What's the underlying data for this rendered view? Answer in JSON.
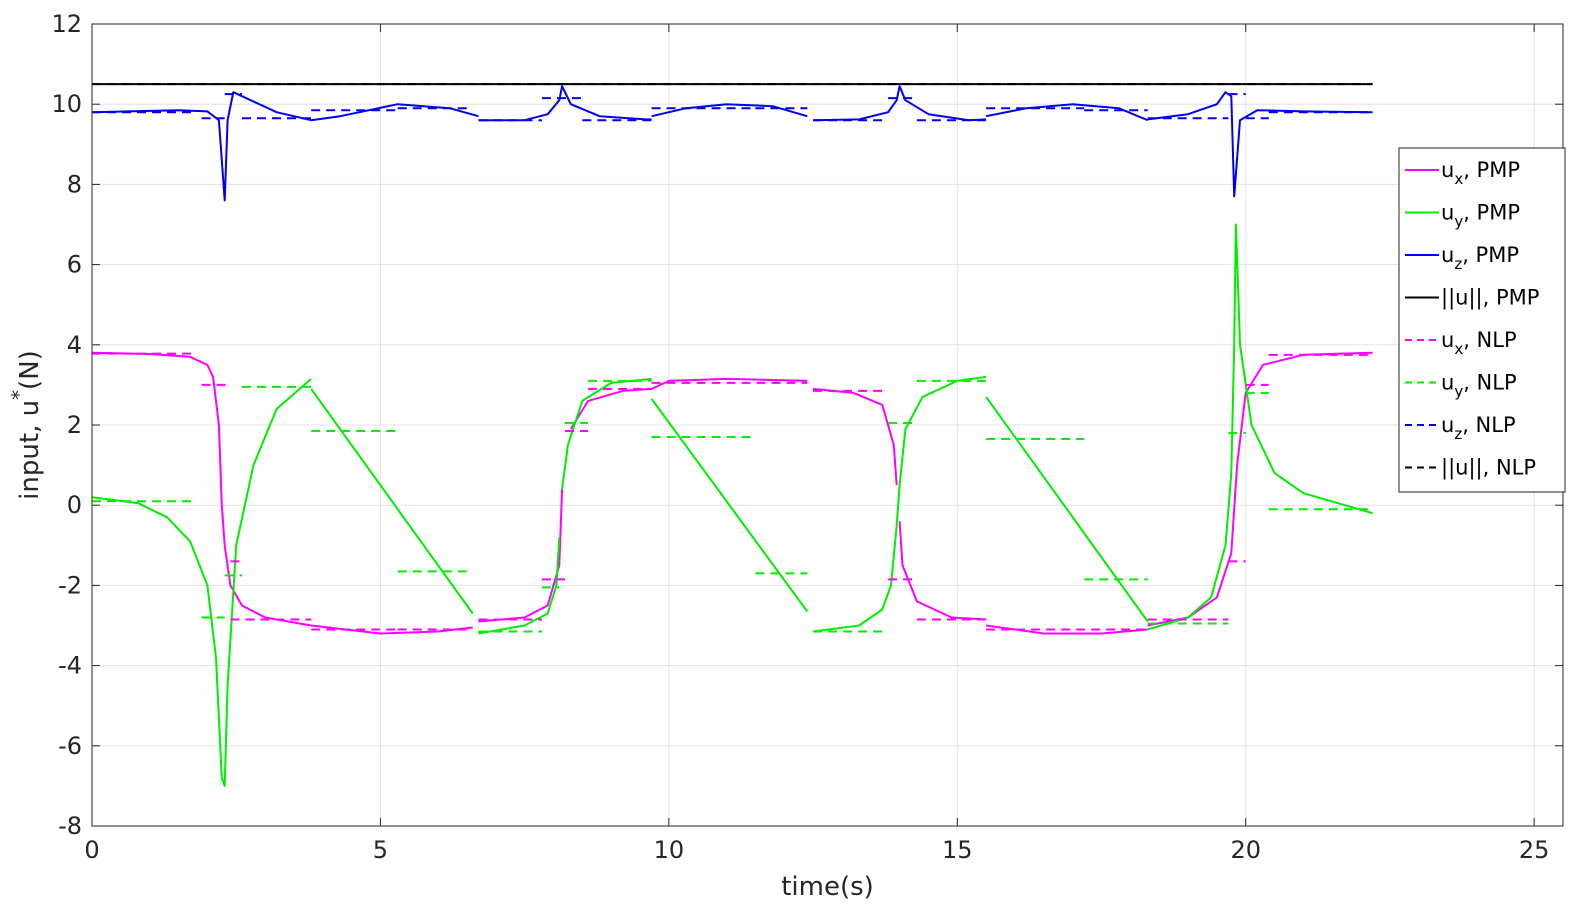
{
  "chart_data": {
    "type": "line",
    "xlabel": "time(s)",
    "ylabel_main": "input, u",
    "ylabel_sup": "*",
    "ylabel_unit": "(N)",
    "xlim": [
      0,
      25.5
    ],
    "ylim": [
      -8,
      12
    ],
    "xticks": [
      0,
      5,
      10,
      15,
      20,
      25
    ],
    "yticks": [
      -8,
      -6,
      -4,
      -2,
      0,
      2,
      4,
      6,
      8,
      10,
      12
    ],
    "grid": true,
    "legend_position": "right",
    "series": [
      {
        "name": "ux, PMP",
        "label_main": "u",
        "label_sub": "x",
        "label_suffix": ", PMP",
        "color": "#ff00ff",
        "style": "solid",
        "segments": [
          [
            [
              0,
              3.8
            ],
            [
              1,
              3.77
            ],
            [
              1.7,
              3.7
            ],
            [
              2.0,
              3.5
            ],
            [
              2.1,
              3.2
            ],
            [
              2.2,
              2.0
            ],
            [
              2.25,
              0
            ],
            [
              2.3,
              -1.0
            ],
            [
              2.4,
              -2.0
            ],
            [
              2.6,
              -2.5
            ],
            [
              3.0,
              -2.8
            ],
            [
              3.8,
              -3.0
            ],
            [
              5.0,
              -3.2
            ],
            [
              6.0,
              -3.15
            ],
            [
              6.6,
              -3.05
            ]
          ],
          [
            [
              6.7,
              -2.9
            ],
            [
              7.5,
              -2.8
            ],
            [
              7.9,
              -2.5
            ],
            [
              8.1,
              -1.5
            ],
            [
              8.15,
              0.4
            ]
          ],
          [
            [
              8.3,
              1.9
            ],
            [
              8.6,
              2.6
            ],
            [
              9.2,
              2.85
            ],
            [
              9.7,
              2.9
            ],
            [
              10.0,
              3.1
            ],
            [
              11.0,
              3.15
            ],
            [
              12.4,
              3.1
            ]
          ],
          [
            [
              12.5,
              2.9
            ],
            [
              13.2,
              2.8
            ],
            [
              13.7,
              2.5
            ],
            [
              13.9,
              1.5
            ],
            [
              13.95,
              0.5
            ]
          ],
          [
            [
              14.0,
              -0.4
            ],
            [
              14.05,
              -1.5
            ],
            [
              14.3,
              -2.4
            ],
            [
              14.9,
              -2.8
            ],
            [
              15.5,
              -2.85
            ]
          ],
          [
            [
              15.5,
              -3.0
            ],
            [
              16.5,
              -3.2
            ],
            [
              17.5,
              -3.2
            ],
            [
              18.3,
              -3.1
            ]
          ],
          [
            [
              18.3,
              -3.0
            ],
            [
              19.0,
              -2.8
            ],
            [
              19.5,
              -2.3
            ],
            [
              19.75,
              -1.2
            ],
            [
              19.85,
              1.0
            ],
            [
              20.0,
              2.8
            ],
            [
              20.3,
              3.5
            ],
            [
              21.0,
              3.75
            ],
            [
              22.2,
              3.8
            ]
          ]
        ]
      },
      {
        "name": "uy, PMP",
        "label_main": "u",
        "label_sub": "y",
        "label_suffix": ", PMP",
        "color": "#00ee00",
        "style": "solid",
        "segments": [
          [
            [
              0,
              0.2
            ],
            [
              0.8,
              0.05
            ],
            [
              1.3,
              -0.3
            ],
            [
              1.7,
              -0.9
            ],
            [
              2.0,
              -2.0
            ],
            [
              2.15,
              -3.8
            ],
            [
              2.25,
              -6.8
            ],
            [
              2.3,
              -7.0
            ],
            [
              2.35,
              -4.5
            ],
            [
              2.5,
              -1.0
            ],
            [
              2.8,
              1.0
            ],
            [
              3.2,
              2.4
            ],
            [
              3.8,
              3.15
            ]
          ],
          [
            [
              3.8,
              2.9
            ],
            [
              6.6,
              -2.7
            ]
          ],
          [
            [
              6.7,
              -3.2
            ],
            [
              7.5,
              -3.0
            ],
            [
              7.9,
              -2.7
            ],
            [
              8.05,
              -2.0
            ],
            [
              8.1,
              -0.8
            ]
          ],
          [
            [
              8.15,
              0.4
            ],
            [
              8.25,
              1.5
            ],
            [
              8.5,
              2.6
            ],
            [
              9.0,
              3.05
            ],
            [
              9.7,
              3.15
            ]
          ],
          [
            [
              9.7,
              2.65
            ],
            [
              12.4,
              -2.65
            ]
          ],
          [
            [
              12.5,
              -3.15
            ],
            [
              13.3,
              -3.0
            ],
            [
              13.7,
              -2.6
            ],
            [
              13.85,
              -2.0
            ],
            [
              13.95,
              -0.5
            ],
            [
              14.0,
              0.5
            ],
            [
              14.1,
              1.9
            ],
            [
              14.4,
              2.7
            ],
            [
              15.0,
              3.1
            ],
            [
              15.5,
              3.2
            ]
          ],
          [
            [
              15.5,
              2.7
            ],
            [
              18.3,
              -2.9
            ]
          ],
          [
            [
              18.3,
              -3.1
            ],
            [
              19.0,
              -2.8
            ],
            [
              19.4,
              -2.3
            ],
            [
              19.65,
              -1.0
            ],
            [
              19.75,
              0.8
            ],
            [
              19.8,
              4.0
            ],
            [
              19.83,
              7.0
            ],
            [
              19.9,
              4.0
            ],
            [
              20.1,
              2.0
            ],
            [
              20.5,
              0.8
            ],
            [
              21.0,
              0.3
            ],
            [
              22.2,
              -0.2
            ]
          ]
        ]
      },
      {
        "name": "uz, PMP",
        "label_main": "u",
        "label_sub": "z",
        "label_suffix": ", PMP",
        "color": "#0000ee",
        "style": "solid",
        "segments": [
          [
            [
              0,
              9.8
            ],
            [
              1.5,
              9.85
            ],
            [
              2.0,
              9.82
            ],
            [
              2.2,
              9.6
            ],
            [
              2.3,
              7.6
            ],
            [
              2.35,
              9.6
            ],
            [
              2.45,
              10.3
            ],
            [
              2.6,
              10.2
            ],
            [
              3.2,
              9.8
            ],
            [
              3.8,
              9.6
            ],
            [
              4.3,
              9.7
            ],
            [
              5.3,
              10.0
            ],
            [
              6.2,
              9.9
            ],
            [
              6.7,
              9.7
            ]
          ],
          [
            [
              6.7,
              9.6
            ],
            [
              7.5,
              9.6
            ],
            [
              7.9,
              9.75
            ],
            [
              8.1,
              10.1
            ],
            [
              8.15,
              10.45
            ],
            [
              8.3,
              10.0
            ],
            [
              8.8,
              9.7
            ],
            [
              9.6,
              9.62
            ],
            [
              9.7,
              9.62
            ]
          ],
          [
            [
              9.7,
              9.7
            ],
            [
              10.3,
              9.9
            ],
            [
              11.0,
              10.0
            ],
            [
              11.8,
              9.95
            ],
            [
              12.4,
              9.7
            ]
          ],
          [
            [
              12.5,
              9.6
            ],
            [
              13.3,
              9.62
            ],
            [
              13.8,
              9.8
            ],
            [
              13.95,
              10.1
            ],
            [
              14.0,
              10.45
            ],
            [
              14.1,
              10.1
            ],
            [
              14.5,
              9.75
            ],
            [
              15.2,
              9.6
            ],
            [
              15.5,
              9.62
            ]
          ],
          [
            [
              15.5,
              9.7
            ],
            [
              16.2,
              9.9
            ],
            [
              17.0,
              10.0
            ],
            [
              17.8,
              9.9
            ],
            [
              18.3,
              9.6
            ]
          ],
          [
            [
              18.3,
              9.62
            ],
            [
              19.0,
              9.75
            ],
            [
              19.5,
              10.0
            ],
            [
              19.65,
              10.3
            ],
            [
              19.75,
              10.2
            ],
            [
              19.8,
              7.7
            ],
            [
              19.9,
              9.6
            ],
            [
              20.2,
              9.85
            ],
            [
              21.0,
              9.82
            ],
            [
              22.2,
              9.8
            ]
          ]
        ]
      },
      {
        "name": "||u||, PMP",
        "label_main": "||u||",
        "label_sub": "",
        "label_suffix": ", PMP",
        "color": "#000000",
        "style": "solid",
        "segments": [
          [
            [
              0,
              10.5
            ],
            [
              22.2,
              10.5
            ]
          ]
        ]
      },
      {
        "name": "ux, NLP",
        "label_main": "u",
        "label_sub": "x",
        "label_suffix": ", NLP",
        "color": "#ff00ff",
        "style": "dashed",
        "steps": [
          [
            0,
            1.8,
            3.78
          ],
          [
            1.9,
            2.4,
            3.0
          ],
          [
            2.4,
            2.6,
            -1.4
          ],
          [
            2.4,
            3.8,
            -2.85
          ],
          [
            3.8,
            5.3,
            -3.1
          ],
          [
            5.3,
            6.6,
            -3.1
          ],
          [
            6.7,
            7.8,
            -2.85
          ],
          [
            7.8,
            8.2,
            -1.85
          ],
          [
            8.2,
            8.6,
            1.85
          ],
          [
            8.6,
            9.7,
            2.9
          ],
          [
            9.7,
            12.4,
            3.05
          ],
          [
            12.5,
            13.8,
            2.85
          ],
          [
            13.8,
            14.3,
            -1.85
          ],
          [
            14.3,
            15.5,
            -2.85
          ],
          [
            15.5,
            18.3,
            -3.1
          ],
          [
            18.3,
            19.7,
            -2.85
          ],
          [
            19.7,
            20.0,
            -1.4
          ],
          [
            20.0,
            20.4,
            3.0
          ],
          [
            20.4,
            22.2,
            3.75
          ]
        ]
      },
      {
        "name": "uy, NLP",
        "label_main": "u",
        "label_sub": "y",
        "label_suffix": ", NLP",
        "color": "#00ee00",
        "style": "dashed",
        "steps": [
          [
            0,
            1.8,
            0.1
          ],
          [
            1.9,
            2.3,
            -2.8
          ],
          [
            2.3,
            2.6,
            -1.75
          ],
          [
            2.6,
            3.8,
            2.95
          ],
          [
            3.8,
            5.3,
            1.85
          ],
          [
            5.3,
            6.6,
            -1.65
          ],
          [
            6.7,
            7.8,
            -3.15
          ],
          [
            7.8,
            8.1,
            -2.05
          ],
          [
            8.2,
            8.6,
            2.05
          ],
          [
            8.6,
            9.7,
            3.1
          ],
          [
            9.7,
            11.5,
            1.7
          ],
          [
            11.5,
            12.4,
            -1.7
          ],
          [
            12.5,
            13.8,
            -3.15
          ],
          [
            13.8,
            14.3,
            2.05
          ],
          [
            14.3,
            15.5,
            3.1
          ],
          [
            15.5,
            17.2,
            1.65
          ],
          [
            17.2,
            18.3,
            -1.85
          ],
          [
            18.3,
            19.7,
            -2.95
          ],
          [
            19.7,
            20.0,
            1.8
          ],
          [
            20.0,
            20.4,
            2.8
          ],
          [
            20.4,
            22.2,
            -0.1
          ]
        ]
      },
      {
        "name": "uz, NLP",
        "label_main": "u",
        "label_sub": "z",
        "label_suffix": ", NLP",
        "color": "#0000ee",
        "style": "dashed",
        "steps": [
          [
            0,
            1.8,
            9.8
          ],
          [
            1.9,
            2.3,
            9.65
          ],
          [
            2.3,
            2.6,
            10.25
          ],
          [
            2.6,
            3.8,
            9.65
          ],
          [
            3.8,
            5.3,
            9.85
          ],
          [
            5.3,
            6.6,
            9.9
          ],
          [
            6.7,
            7.8,
            9.6
          ],
          [
            7.8,
            8.5,
            10.15
          ],
          [
            8.5,
            9.7,
            9.6
          ],
          [
            9.7,
            11.5,
            9.9
          ],
          [
            11.5,
            12.4,
            9.9
          ],
          [
            12.5,
            13.8,
            9.6
          ],
          [
            13.8,
            14.3,
            10.15
          ],
          [
            14.3,
            15.5,
            9.6
          ],
          [
            15.5,
            17.2,
            9.9
          ],
          [
            17.2,
            18.3,
            9.85
          ],
          [
            18.3,
            19.7,
            9.65
          ],
          [
            19.7,
            20.0,
            10.25
          ],
          [
            20.0,
            20.4,
            9.65
          ],
          [
            20.4,
            22.2,
            9.8
          ]
        ]
      },
      {
        "name": "||u||, NLP",
        "label_main": "||u||",
        "label_sub": "",
        "label_suffix": ", NLP",
        "color": "#000000",
        "style": "dashed",
        "steps": [
          [
            0,
            22.2,
            10.5
          ]
        ]
      }
    ]
  }
}
